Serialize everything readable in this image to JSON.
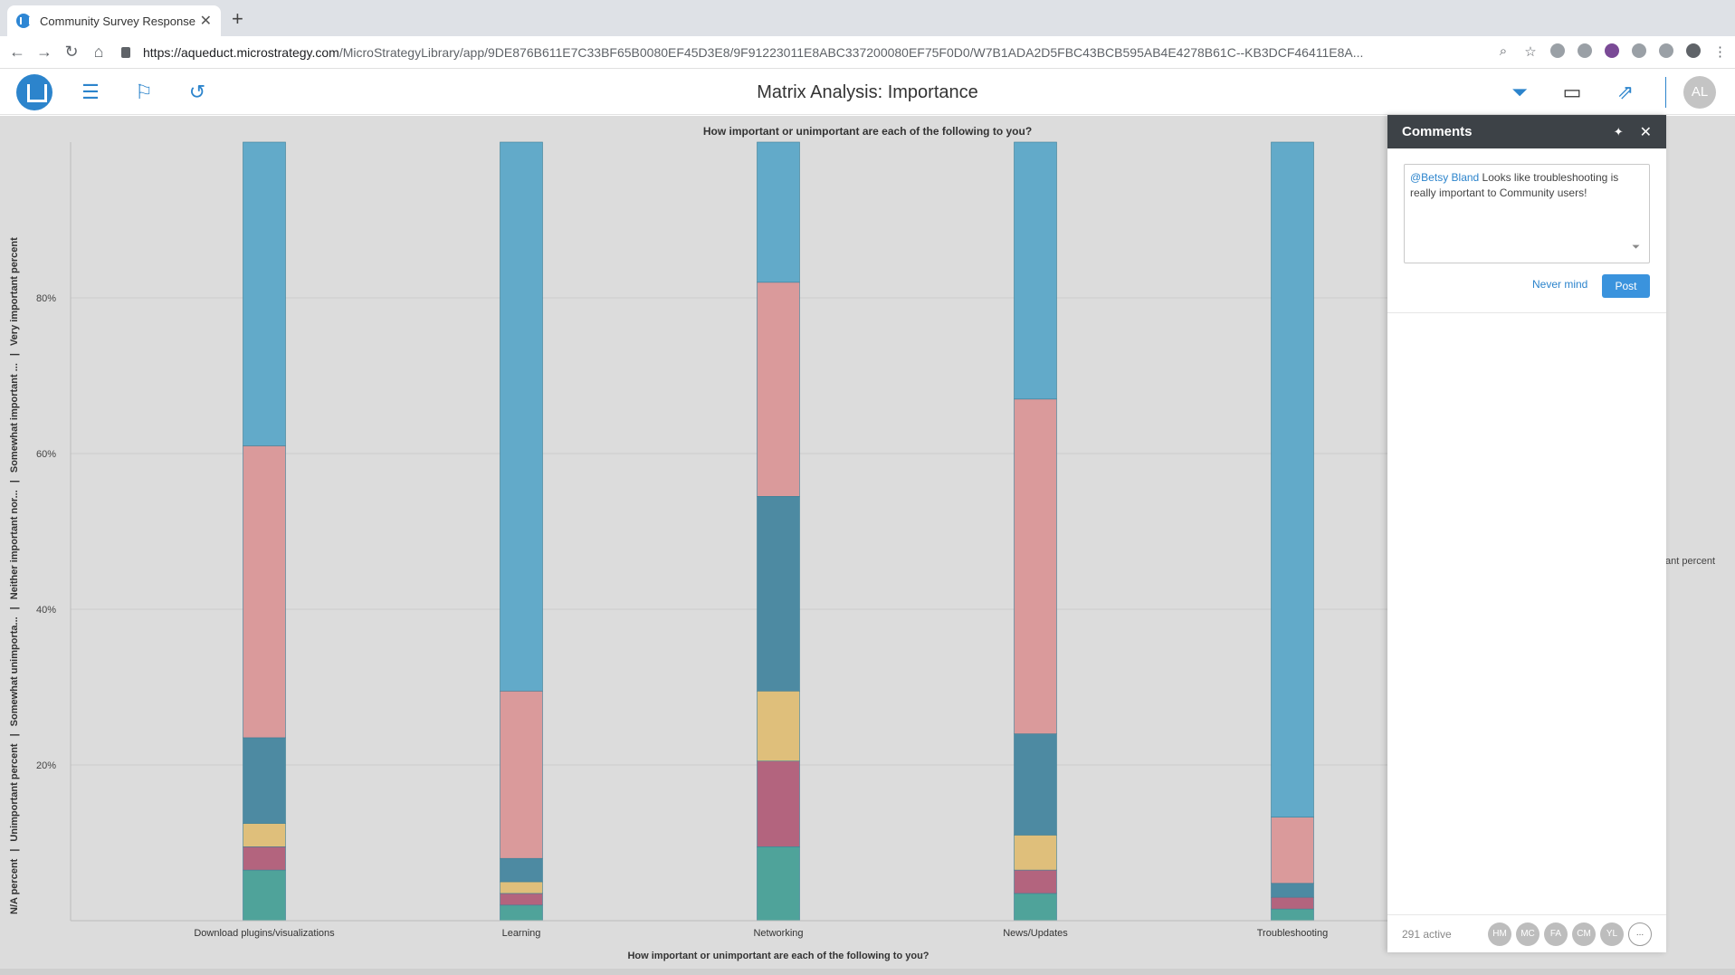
{
  "browser": {
    "tab_title": "Community Survey Responses",
    "url_host": "https://aqueduct.microstrategy.com",
    "url_path": "/MicroStrategyLibrary/app/9DE876B611E7C33BF65B0080EF45D3E8/9F91223011E8ABC337200080EF75F0D0/W7B1ADA2D5FBC43BCB595AB4E4278B61C--KB3DCF46411E8A..."
  },
  "app": {
    "title": "Matrix Analysis: Importance",
    "avatar": "AL"
  },
  "comments": {
    "title": "Comments",
    "mention": "@Betsy Bland",
    "draft_text": " Looks like troubleshooting is really important to Community users!",
    "cancel_label": "Never mind",
    "post_label": "Post",
    "active_count": "291 active",
    "users": [
      "HM",
      "MC",
      "FA",
      "CM",
      "YL"
    ],
    "more": "..."
  },
  "legend_fragment": "ant percent",
  "chart_data": {
    "type": "bar",
    "stacked": true,
    "title": "How important or unimportant are each of the following to you?",
    "xlabel": "How important or unimportant are each of the following to you?",
    "ylabel_parts": [
      "N/A percent",
      "Unimportant percent",
      "Somewhat unimporta...",
      "Neither important nor...",
      "Somewhat important ...",
      "Very important percent"
    ],
    "ylim": [
      0,
      100
    ],
    "yticks": [
      20,
      40,
      60,
      80
    ],
    "ytick_labels": [
      "20%",
      "40%",
      "60%",
      "80%"
    ],
    "grid": true,
    "categories": [
      "Download plugins/visualizations",
      "Learning",
      "Networking",
      "News/Updates",
      "Troubleshooting"
    ],
    "series": [
      {
        "name": "N/A percent",
        "color": "#4fa39a",
        "values": [
          6.5,
          2.0,
          9.5,
          3.5,
          1.5
        ]
      },
      {
        "name": "Unimportant percent",
        "color": "#b3647e",
        "values": [
          3.0,
          1.5,
          11.0,
          3.0,
          1.5
        ]
      },
      {
        "name": "Somewhat unimporta...",
        "color": "#dfbf7b",
        "values": [
          3.0,
          1.5,
          9.0,
          4.5,
          0.0
        ]
      },
      {
        "name": "Neither important nor...",
        "color": "#4d8aa2",
        "values": [
          11.0,
          3.0,
          25.0,
          13.0,
          1.8
        ]
      },
      {
        "name": "Somewhat important ...",
        "color": "#da9a9b",
        "values": [
          37.5,
          21.5,
          27.5,
          43.0,
          8.5
        ]
      },
      {
        "name": "Very important percent",
        "color": "#62aac9",
        "values": [
          39.0,
          70.5,
          18.0,
          33.0,
          86.7
        ]
      }
    ]
  }
}
